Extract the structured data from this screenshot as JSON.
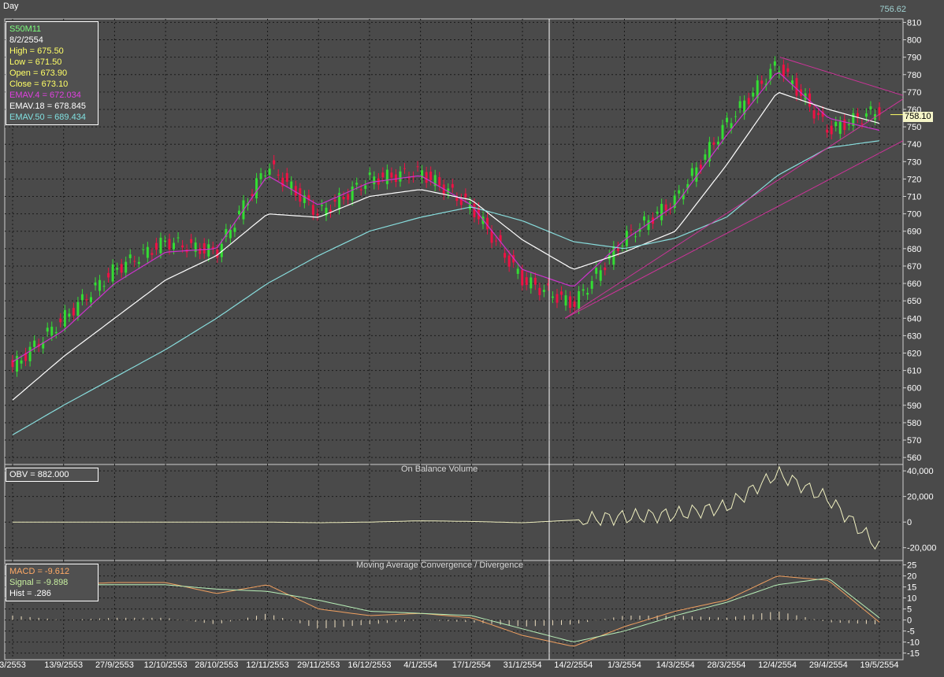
{
  "header": {
    "timeframe": "Day",
    "top_value": "756.62"
  },
  "price_panel": {
    "info_lines": [
      {
        "text": "S50M11",
        "color": "#7CFC7C"
      },
      {
        "text": "8/2/2554",
        "color": "#ffffff"
      },
      {
        "text": "High  = 675.50",
        "color": "#ffff66"
      },
      {
        "text": "Low   = 671.50",
        "color": "#ffff66"
      },
      {
        "text": "Open = 673.90",
        "color": "#ffff66"
      },
      {
        "text": "Close = 673.10",
        "color": "#ffff66"
      },
      {
        "text": "EMAV.4 = 672.034",
        "color": "#e040e0"
      },
      {
        "text": "EMAV.18 = 678.845",
        "color": "#ffffff"
      },
      {
        "text": "EMAV.50 = 689.434",
        "color": "#80e0e0"
      }
    ],
    "last_price_tag": "758.10",
    "y_ticks": [
      "560",
      "570",
      "580",
      "590",
      "600",
      "610",
      "620",
      "630",
      "640",
      "650",
      "660",
      "670",
      "680",
      "690",
      "700",
      "710",
      "720",
      "730",
      "740",
      "750",
      "760",
      "770",
      "780",
      "790",
      "800",
      "810"
    ]
  },
  "obv_panel": {
    "title": "On Balance Volume",
    "info_lines": [
      {
        "text": "OBV = 882.000",
        "color": "#ffffff"
      }
    ],
    "y_ticks": [
      "-20,000",
      "0",
      "20,000",
      "40,000"
    ]
  },
  "macd_panel": {
    "title": "Moving Average Convergence / Divergence",
    "info_lines": [
      {
        "text": "MACD = -9.612",
        "color": "#ffaa66"
      },
      {
        "text": "Signal = -9.898",
        "color": "#c8f0a0"
      },
      {
        "text": "Hist = .286",
        "color": "#ffffff"
      }
    ],
    "y_ticks": [
      "-15",
      "-10",
      "-5",
      "0",
      "5",
      "10",
      "15",
      "20",
      "25"
    ]
  },
  "x_ticks": [
    "3/2553",
    "13/9/2553",
    "27/9/2553",
    "12/10/2553",
    "28/10/2553",
    "12/11/2553",
    "29/11/2553",
    "16/12/2553",
    "4/1/2554",
    "17/1/2554",
    "31/1/2554",
    "14/2/2554",
    "1/3/2554",
    "14/3/2554",
    "28/3/2554",
    "12/4/2554",
    "29/4/2554",
    "19/5/2554"
  ],
  "chart_data": [
    {
      "type": "line",
      "title": "S50M11",
      "x": [
        "3/2553",
        "13/9/2553",
        "27/9/2553",
        "12/10/2553",
        "28/10/2553",
        "12/11/2553",
        "29/11/2553",
        "16/12/2553",
        "4/1/2554",
        "17/1/2554",
        "31/1/2554",
        "14/2/2554",
        "1/3/2554",
        "14/3/2554",
        "28/3/2554",
        "12/4/2554",
        "29/4/2554",
        "19/5/2554"
      ],
      "ylim": [
        556,
        812
      ],
      "series": [
        {
          "name": "EMAV.4",
          "values": [
            615,
            633,
            660,
            678,
            680,
            722,
            705,
            718,
            722,
            705,
            668,
            658,
            685,
            705,
            745,
            782,
            755,
            748
          ]
        },
        {
          "name": "EMAV.18",
          "values": [
            593,
            618,
            640,
            662,
            676,
            700,
            698,
            710,
            714,
            708,
            685,
            668,
            678,
            690,
            728,
            770,
            760,
            752
          ]
        },
        {
          "name": "EMAV.50",
          "values": [
            573,
            590,
            606,
            622,
            640,
            660,
            676,
            690,
            698,
            704,
            696,
            684,
            680,
            686,
            698,
            722,
            738,
            742
          ]
        }
      ],
      "close_series": [
        612,
        640,
        668,
        684,
        678,
        728,
        700,
        720,
        724,
        704,
        662,
        648,
        686,
        708,
        752,
        786,
        748,
        760
      ],
      "grid": true
    },
    {
      "type": "line",
      "title": "On Balance Volume",
      "x": [
        "3/2553",
        "13/9/2553",
        "27/9/2553",
        "12/10/2553",
        "28/10/2553",
        "12/11/2553",
        "29/11/2553",
        "16/12/2553",
        "4/1/2554",
        "17/1/2554",
        "31/1/2554",
        "14/2/2554",
        "1/3/2554",
        "14/3/2554",
        "28/3/2554",
        "12/4/2554",
        "29/4/2554",
        "19/5/2554"
      ],
      "ylim": [
        -30000,
        45000
      ],
      "series": [
        {
          "name": "OBV",
          "values": [
            0,
            0,
            0,
            0,
            0,
            0,
            -500,
            0,
            1000,
            500,
            -500,
            1500,
            4000,
            6000,
            12000,
            38000,
            18000,
            -20000
          ]
        }
      ],
      "grid": true
    },
    {
      "type": "line",
      "title": "Moving Average Convergence / Divergence",
      "x": [
        "3/2553",
        "13/9/2553",
        "27/9/2553",
        "12/10/2553",
        "28/10/2553",
        "12/11/2553",
        "29/11/2553",
        "16/12/2553",
        "4/1/2554",
        "17/1/2554",
        "31/1/2554",
        "14/2/2554",
        "1/3/2554",
        "14/3/2554",
        "28/3/2554",
        "12/4/2554",
        "29/4/2554",
        "19/5/2554"
      ],
      "ylim": [
        -18,
        27
      ],
      "series": [
        {
          "name": "MACD",
          "values": [
            17,
            16,
            17,
            17,
            12,
            16,
            5,
            2,
            3,
            1,
            -7,
            -12,
            -3,
            4,
            9,
            20,
            18,
            -1
          ]
        },
        {
          "name": "Signal",
          "values": [
            15,
            16,
            16,
            16,
            14,
            13,
            9,
            4,
            3,
            2,
            -4,
            -10,
            -5,
            2,
            8,
            16,
            19,
            1
          ]
        }
      ],
      "hist": [
        2,
        0,
        1,
        1,
        -2,
        3,
        -4,
        -2,
        0,
        -1,
        -3,
        -2,
        2,
        2,
        1,
        4,
        -1,
        -2
      ],
      "grid": true
    }
  ],
  "colors": {
    "bg": "#4a4a4a",
    "grid": "#1a1a1a",
    "up": "#33dd33",
    "down": "#ee1144",
    "ema4": "#cc33cc",
    "ema18": "#ffffff",
    "ema50": "#88dddd",
    "obv": "#f0f0c0",
    "macd": "#f0a060",
    "signal": "#b8f0b8",
    "hist": "#f0e0c0",
    "trend": "#cc3399"
  }
}
